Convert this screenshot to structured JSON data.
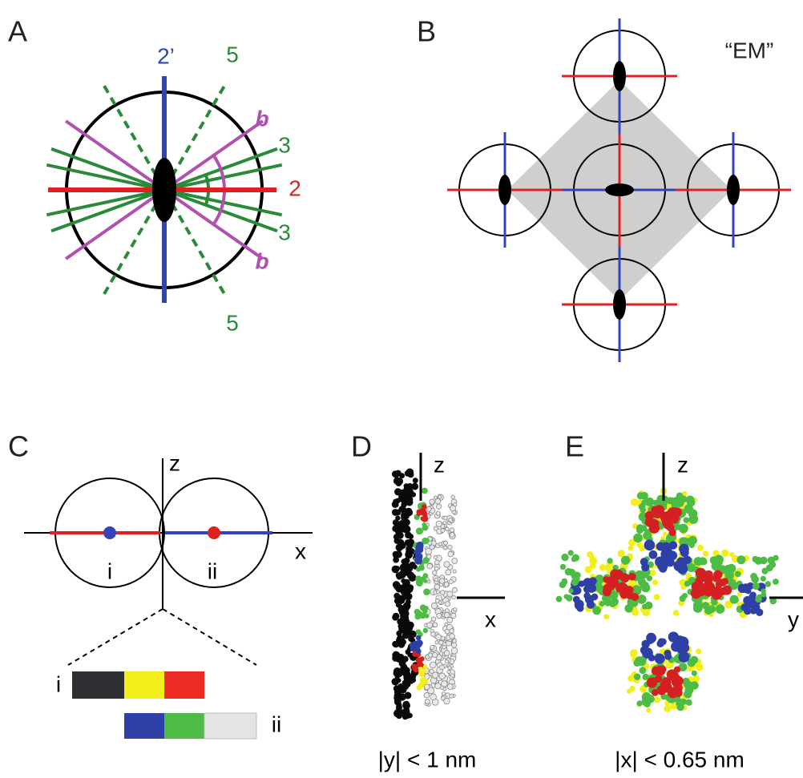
{
  "panel_a": {
    "label": "A",
    "labels": [
      "2’",
      "5",
      "b",
      "3",
      "2",
      "3",
      "b",
      "5"
    ]
  },
  "panel_b": {
    "label": "B",
    "note": "“EM”"
  },
  "panel_c": {
    "label": "C",
    "axes": [
      "z",
      "x"
    ],
    "circles": [
      "i",
      "ii"
    ],
    "bars": [
      "i",
      "ii"
    ]
  },
  "panel_d": {
    "label": "D",
    "axes": [
      "z",
      "x"
    ],
    "caption": "|y| < 1 nm"
  },
  "panel_e": {
    "label": "E",
    "axes": [
      "z",
      "y"
    ],
    "caption": "|x| < 0.65 nm"
  }
}
